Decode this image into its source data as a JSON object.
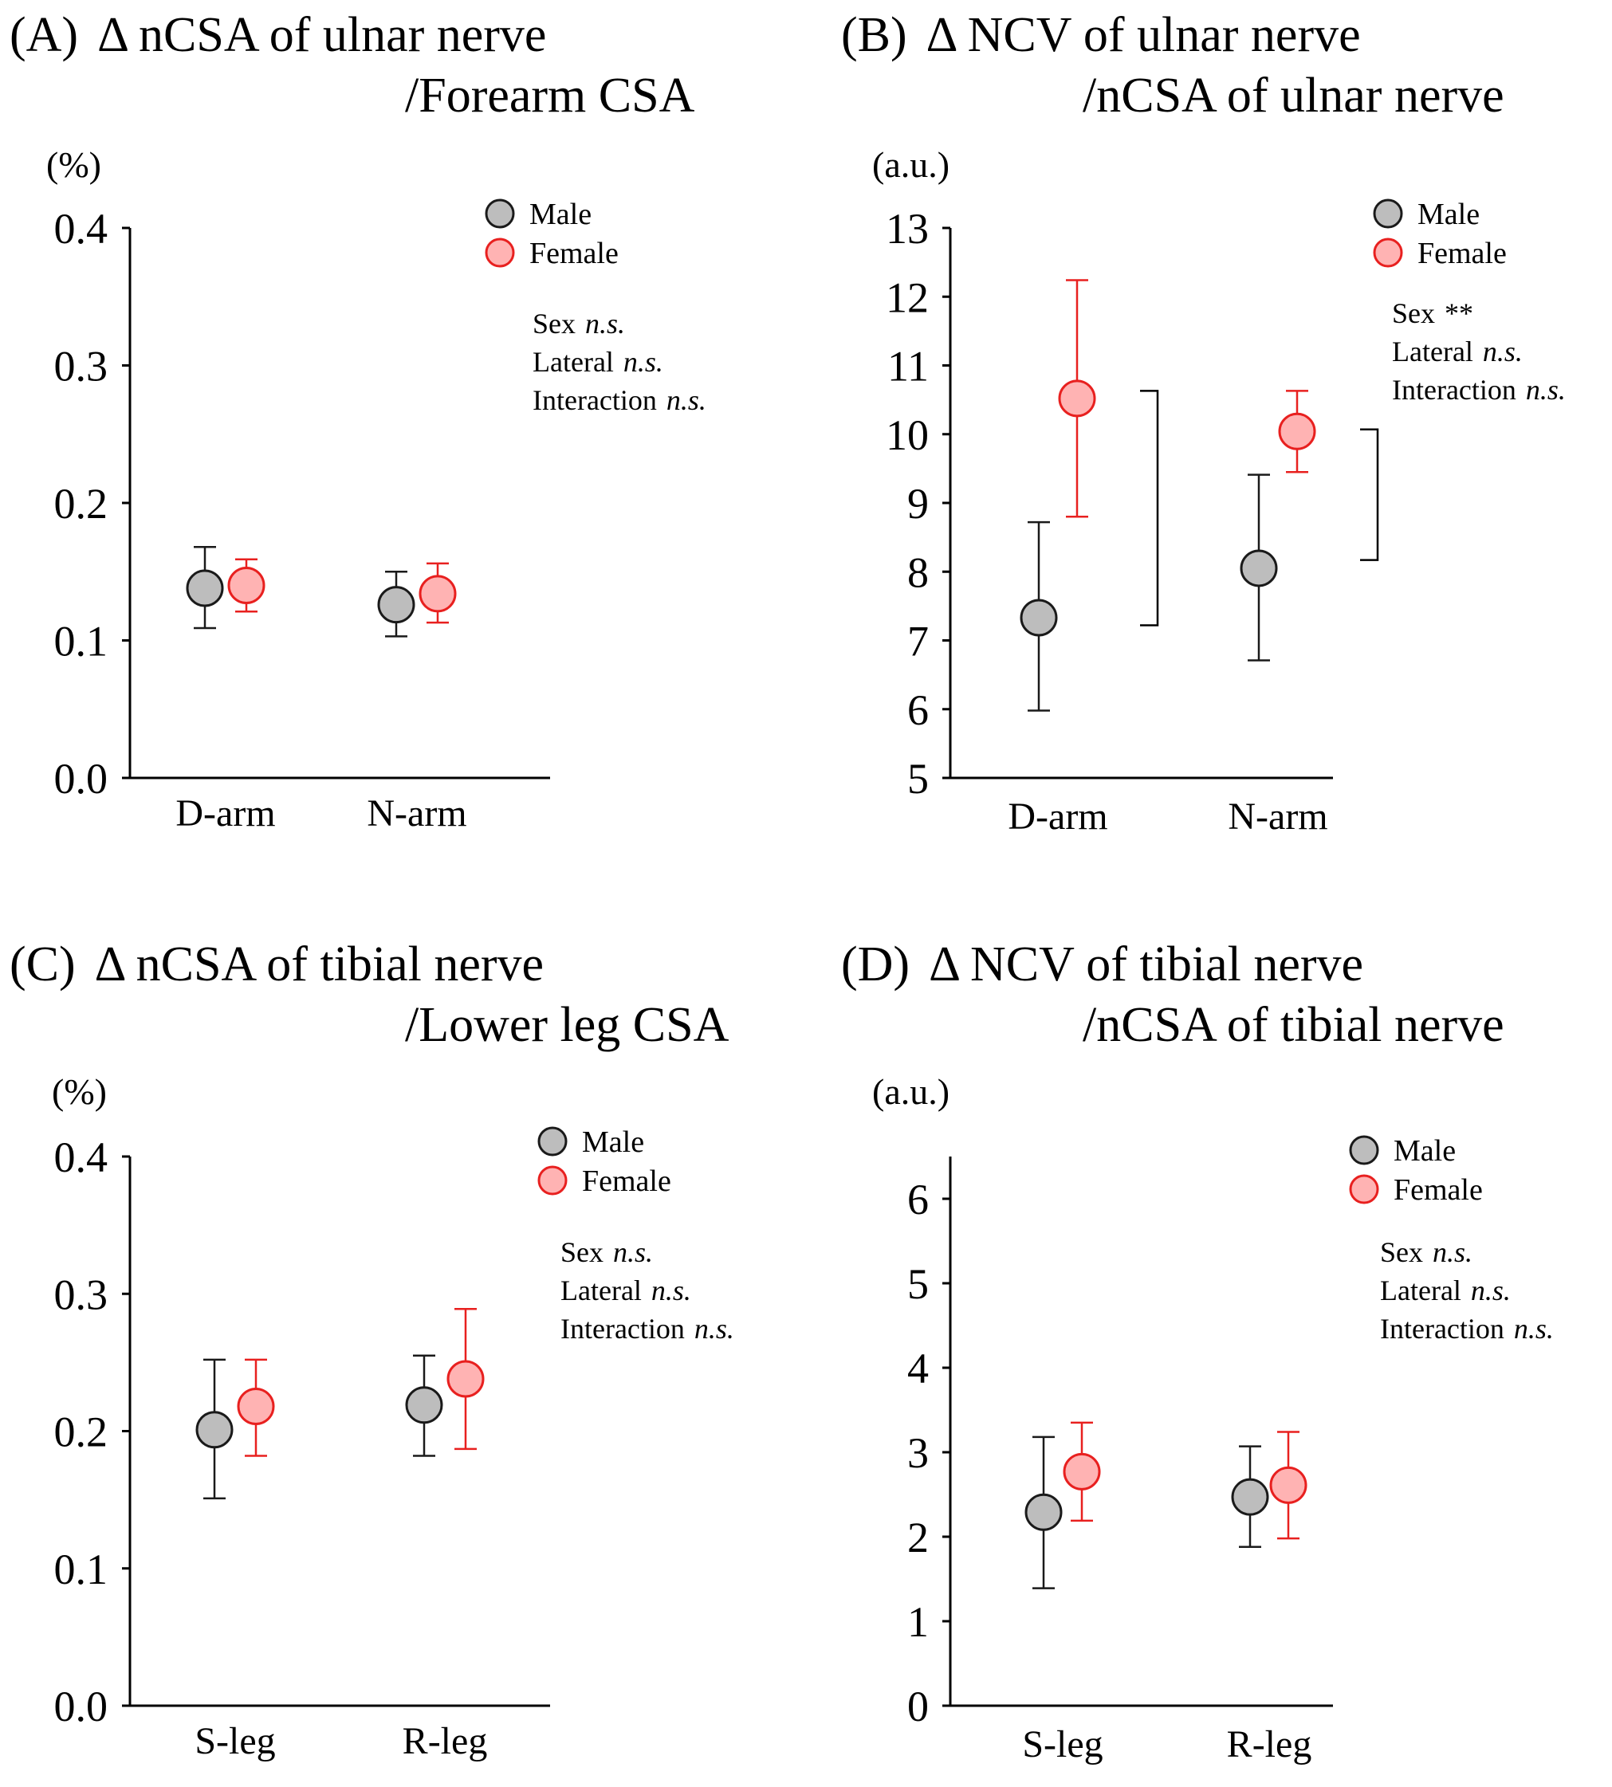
{
  "colors": {
    "male_fill": "#bdbdbd",
    "male_stroke": "#1a1a1a",
    "female_fill": "#ffb3b3",
    "female_stroke": "#e8201f",
    "axis": "#000000"
  },
  "chart_data": [
    {
      "type": "scatter",
      "panel": "(A)",
      "title_line1": "Δ nCSA of ulnar nerve",
      "title_line2": "/Forearm CSA",
      "unit": "(%)",
      "categories": [
        "D-arm",
        "N-arm"
      ],
      "ylim": [
        0.0,
        0.4
      ],
      "yticks": [
        0.0,
        0.1,
        0.2,
        0.3,
        0.4
      ],
      "ytick_labels": [
        "0.0",
        "0.1",
        "0.2",
        "0.3",
        "0.4"
      ],
      "series": [
        {
          "name": "Male",
          "values": [
            0.138,
            0.126
          ],
          "err_low": [
            0.109,
            0.103
          ],
          "err_high": [
            0.168,
            0.15
          ]
        },
        {
          "name": "Female",
          "values": [
            0.14,
            0.134
          ],
          "err_low": [
            0.121,
            0.113
          ],
          "err_high": [
            0.159,
            0.156
          ]
        }
      ],
      "legend": [
        "Male",
        "Female"
      ],
      "stats": [
        {
          "label": "Sex",
          "value": "n.s."
        },
        {
          "label": "Lateral",
          "value": "n.s."
        },
        {
          "label": "Interaction",
          "value": "n.s."
        }
      ],
      "brackets": []
    },
    {
      "type": "scatter",
      "panel": "(B)",
      "title_line1": "Δ NCV of ulnar nerve",
      "title_line2": "/nCSA of ulnar nerve",
      "unit": "(a.u.)",
      "categories": [
        "D-arm",
        "N-arm"
      ],
      "ylim": [
        5,
        13
      ],
      "yticks": [
        5,
        6,
        7,
        8,
        9,
        10,
        11,
        12,
        13
      ],
      "ytick_labels": [
        "5",
        "6",
        "7",
        "8",
        "9",
        "10",
        "11",
        "12",
        "13"
      ],
      "series": [
        {
          "name": "Male",
          "values": [
            7.33,
            8.05
          ],
          "err_low": [
            5.98,
            6.71
          ],
          "err_high": [
            8.72,
            9.41
          ]
        },
        {
          "name": "Female",
          "values": [
            10.52,
            10.04
          ],
          "err_low": [
            8.8,
            9.45
          ],
          "err_high": [
            12.24,
            10.63
          ]
        }
      ],
      "legend": [
        "Male",
        "Female"
      ],
      "stats": [
        {
          "label": "Sex",
          "value": "**"
        },
        {
          "label": "Lateral",
          "value": "n.s."
        },
        {
          "label": "Interaction",
          "value": "n.s."
        }
      ],
      "brackets": [
        {
          "category": 0,
          "y_top": 10.63,
          "y_bottom": 7.22
        },
        {
          "category": 1,
          "y_top": 10.07,
          "y_bottom": 8.17
        }
      ]
    },
    {
      "type": "scatter",
      "panel": "(C)",
      "title_line1": "Δ nCSA of tibial nerve",
      "title_line2": "/Lower leg CSA",
      "unit": "(%)",
      "categories": [
        "S-leg",
        "R-leg"
      ],
      "ylim": [
        0.0,
        0.4
      ],
      "yticks": [
        0.0,
        0.1,
        0.2,
        0.3,
        0.4
      ],
      "ytick_labels": [
        "0.0",
        "0.1",
        "0.2",
        "0.3",
        "0.4"
      ],
      "series": [
        {
          "name": "Male",
          "values": [
            0.201,
            0.219
          ],
          "err_low": [
            0.151,
            0.182
          ],
          "err_high": [
            0.252,
            0.255
          ]
        },
        {
          "name": "Female",
          "values": [
            0.218,
            0.238
          ],
          "err_low": [
            0.182,
            0.187
          ],
          "err_high": [
            0.252,
            0.289
          ]
        }
      ],
      "legend": [
        "Male",
        "Female"
      ],
      "stats": [
        {
          "label": "Sex",
          "value": "n.s."
        },
        {
          "label": "Lateral",
          "value": "n.s."
        },
        {
          "label": "Interaction",
          "value": "n.s."
        }
      ],
      "brackets": []
    },
    {
      "type": "scatter",
      "panel": "(D)",
      "title_line1": "Δ NCV of tibial nerve",
      "title_line2": "/nCSA of tibial nerve",
      "unit": "(a.u.)",
      "categories": [
        "S-leg",
        "R-leg"
      ],
      "ylim": [
        0,
        6.5
      ],
      "yticks": [
        0,
        1,
        2,
        3,
        4,
        5,
        6
      ],
      "ytick_labels": [
        "0",
        "1",
        "2",
        "3",
        "4",
        "5",
        "6"
      ],
      "series": [
        {
          "name": "Male",
          "values": [
            2.29,
            2.47
          ],
          "err_low": [
            1.39,
            1.88
          ],
          "err_high": [
            3.18,
            3.07
          ]
        },
        {
          "name": "Female",
          "values": [
            2.77,
            2.61
          ],
          "err_low": [
            2.19,
            1.98
          ],
          "err_high": [
            3.35,
            3.24
          ]
        }
      ],
      "legend": [
        "Male",
        "Female"
      ],
      "stats": [
        {
          "label": "Sex",
          "value": "n.s."
        },
        {
          "label": "Lateral",
          "value": "n.s."
        },
        {
          "label": "Interaction",
          "value": "n.s."
        }
      ],
      "brackets": []
    }
  ]
}
